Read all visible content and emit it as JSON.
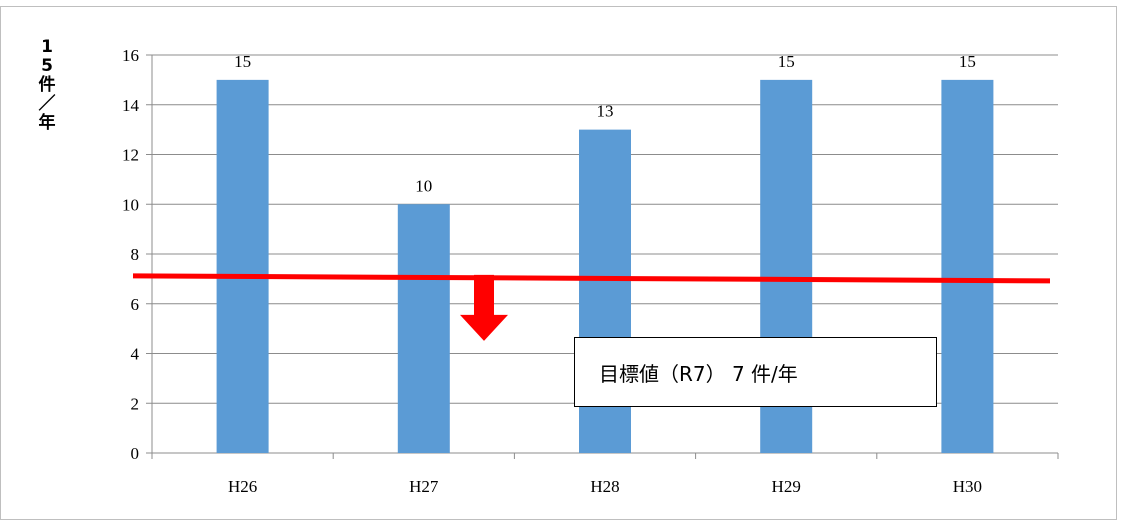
{
  "chart_data": {
    "type": "bar",
    "categories": [
      "H26",
      "H27",
      "H28",
      "H29",
      "H30"
    ],
    "values": [
      15,
      10,
      13,
      15,
      15
    ],
    "data_labels": [
      "15",
      "10",
      "13",
      "15",
      "15"
    ],
    "ylabel_chars": [
      "1",
      "5",
      "件",
      "／",
      "年"
    ],
    "ylim": [
      0,
      16
    ],
    "yticks": [
      0,
      2,
      4,
      6,
      8,
      10,
      12,
      14,
      16
    ],
    "grid": true,
    "target_value": 7,
    "target_label": "目標値（R7） 7 件/年",
    "bar_color": "#5B9BD5",
    "target_color": "#FF0000"
  }
}
